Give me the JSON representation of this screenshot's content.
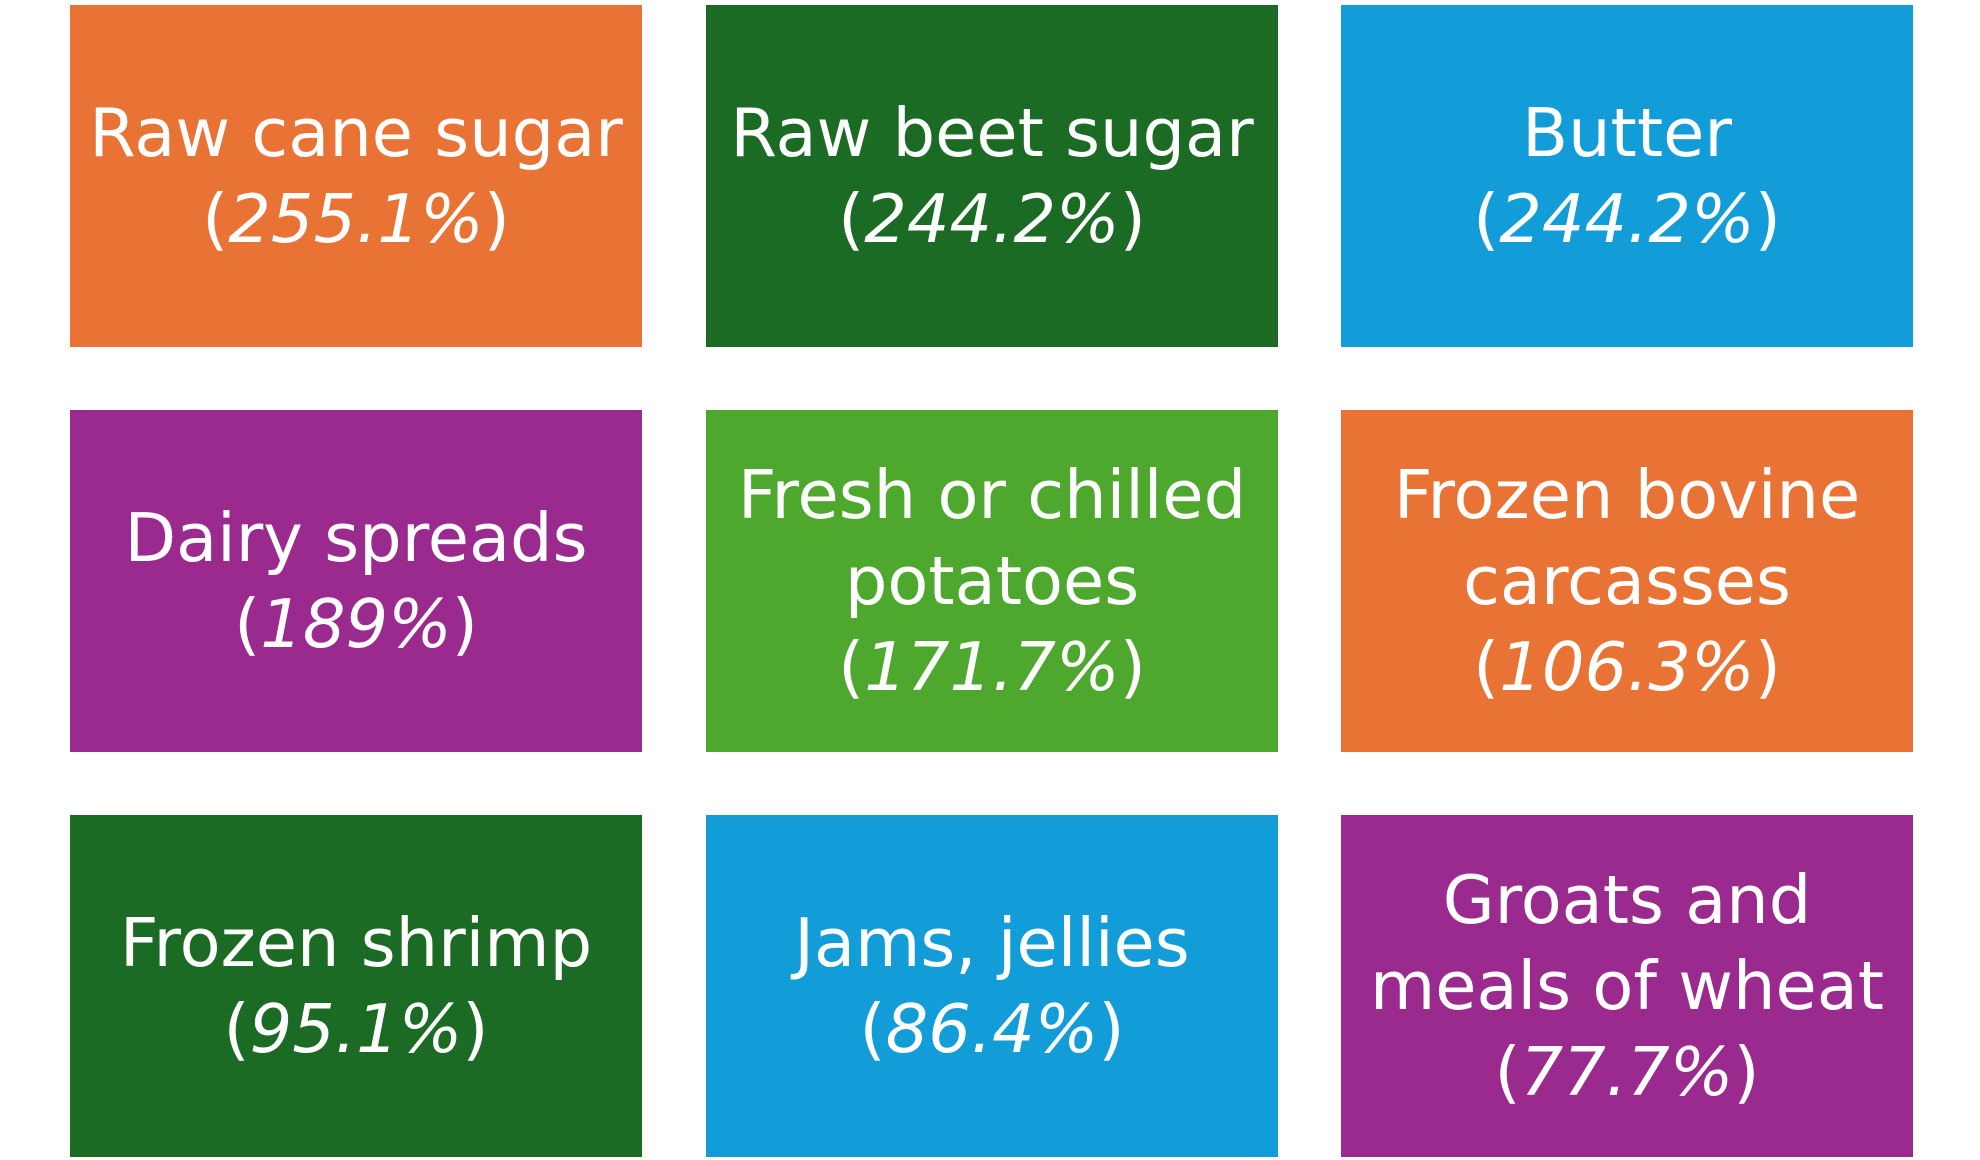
{
  "tiles": [
    {
      "name": "Raw cane sugar",
      "value": "255.1%",
      "color": "#E97334"
    },
    {
      "name": "Raw beet sugar",
      "value": "244.2%",
      "color": "#1B6B24"
    },
    {
      "name": "Butter",
      "value": "244.2%",
      "color": "#129DD8"
    },
    {
      "name": "Dairy spreads",
      "value": "189%",
      "color": "#9B2A8F"
    },
    {
      "name": "Fresh or chilled potatoes",
      "value": "171.7%",
      "color": "#4FA82E"
    },
    {
      "name": "Frozen bovine carcasses",
      "value": "106.3%",
      "color": "#E97334"
    },
    {
      "name": "Frozen shrimp",
      "value": "95.1%",
      "color": "#1B6B24"
    },
    {
      "name": "Jams, jellies",
      "value": "86.4%",
      "color": "#129DD8"
    },
    {
      "name": "Groats and meals of wheat",
      "value": "77.7%",
      "color": "#9B2A8F"
    }
  ]
}
